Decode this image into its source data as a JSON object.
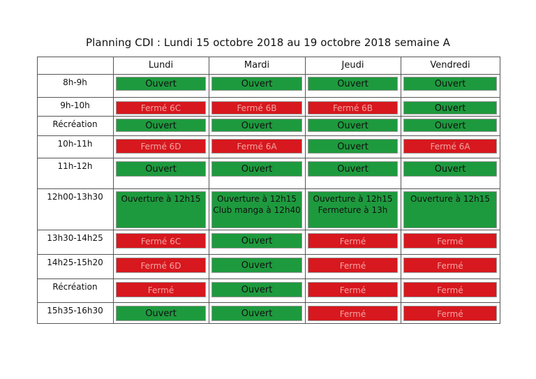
{
  "title": "Planning CDI : Lundi 15 octobre 2018 au 19 octobre 2018 semaine A",
  "days": [
    "Lundi",
    "Mardi",
    "Jeudi",
    "Vendredi"
  ],
  "colors": {
    "open": "#1e9a3e",
    "closed": "#d7181e",
    "closed_text": "#f4a3a3"
  },
  "rows": [
    {
      "time": "8h-9h",
      "cells": [
        {
          "status": "open",
          "text": "Ouvert"
        },
        {
          "status": "open",
          "text": "Ouvert"
        },
        {
          "status": "open",
          "text": "Ouvert"
        },
        {
          "status": "open",
          "text": "Ouvert"
        }
      ]
    },
    {
      "time": "9h-10h",
      "cells": [
        {
          "status": "closed",
          "text": "Fermé 6C"
        },
        {
          "status": "closed",
          "text": "Fermé 6B"
        },
        {
          "status": "closed",
          "text": "Fermé 6B"
        },
        {
          "status": "open",
          "text": "Ouvert"
        }
      ]
    },
    {
      "time": "Récréation",
      "cells": [
        {
          "status": "open",
          "text": "Ouvert"
        },
        {
          "status": "open",
          "text": "Ouvert"
        },
        {
          "status": "open",
          "text": "Ouvert"
        },
        {
          "status": "open",
          "text": "Ouvert"
        }
      ]
    },
    {
      "time": "10h-11h",
      "cells": [
        {
          "status": "closed",
          "text": "Fermé 6D"
        },
        {
          "status": "closed",
          "text": "Fermé 6A"
        },
        {
          "status": "open",
          "text": "Ouvert"
        },
        {
          "status": "closed",
          "text": "Fermé 6A"
        }
      ]
    },
    {
      "time": "11h-12h",
      "cells": [
        {
          "status": "open",
          "text": "Ouvert"
        },
        {
          "status": "open",
          "text": "Ouvert"
        },
        {
          "status": "open",
          "text": "Ouvert"
        },
        {
          "status": "open",
          "text": "Ouvert"
        }
      ]
    },
    {
      "time": "12h00-13h30",
      "cells": [
        {
          "status": "open",
          "text": "Ouverture à 12h15"
        },
        {
          "status": "open",
          "text": "Ouverture à 12h15",
          "text2": "Club manga à 12h40"
        },
        {
          "status": "open",
          "text": "Ouverture à 12h15",
          "text2": "Fermeture à 13h"
        },
        {
          "status": "open",
          "text": "Ouverture à 12h15"
        }
      ]
    },
    {
      "time": "13h30-14h25",
      "cells": [
        {
          "status": "closed",
          "text": "Fermé 6C"
        },
        {
          "status": "open",
          "text": "Ouvert"
        },
        {
          "status": "closed",
          "text": "Fermé"
        },
        {
          "status": "closed",
          "text": "Fermé"
        }
      ]
    },
    {
      "time": "14h25-15h20",
      "cells": [
        {
          "status": "closed",
          "text": "Fermé 6D"
        },
        {
          "status": "open",
          "text": "Ouvert"
        },
        {
          "status": "closed",
          "text": "Fermé"
        },
        {
          "status": "closed",
          "text": "Fermé"
        }
      ]
    },
    {
      "time": "Récréation",
      "cells": [
        {
          "status": "closed",
          "text": "Fermé"
        },
        {
          "status": "open",
          "text": "Ouvert"
        },
        {
          "status": "closed",
          "text": "Fermé"
        },
        {
          "status": "closed",
          "text": "Fermé"
        }
      ]
    },
    {
      "time": "15h35-16h30",
      "cells": [
        {
          "status": "open",
          "text": "Ouvert"
        },
        {
          "status": "open",
          "text": "Ouvert"
        },
        {
          "status": "closed",
          "text": "Fermé"
        },
        {
          "status": "closed",
          "text": "Fermé"
        }
      ]
    }
  ]
}
